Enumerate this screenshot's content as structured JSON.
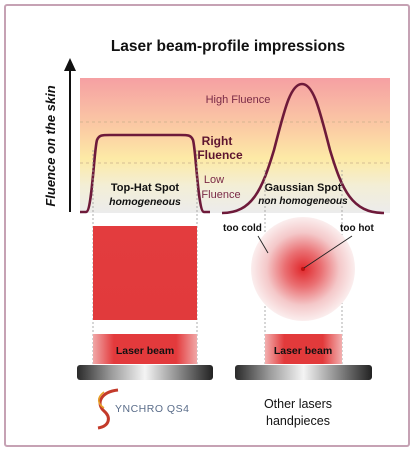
{
  "title": "Laser beam-profile impressions",
  "y_axis_label": "Fluence on the skin",
  "zones": {
    "high": "High Fluence",
    "right_line1": "Right",
    "right_line2": "Fluence",
    "low_line1": "Low",
    "low_line2": "Fluence"
  },
  "tophat": {
    "label": "Top-Hat Spot",
    "sublabel": "homogeneous",
    "beam_label": "Laser beam"
  },
  "gaussian": {
    "label": "Gaussian Spot",
    "sublabel": "non homogeneous",
    "beam_label": "Laser beam",
    "cold_label": "too cold",
    "hot_label": "too hot"
  },
  "footer": {
    "logo_text": "YNCHRO QS4",
    "other_line1": "Other lasers",
    "other_line2": "handpieces"
  },
  "colors": {
    "frame_border": "#c6a2b4",
    "curve": "#6e1a3a",
    "laser_red": "#e23c3c",
    "band_top": "#f5a6a6",
    "band_mid": "#fde8a0",
    "band_bottom": "#eeeeee"
  }
}
